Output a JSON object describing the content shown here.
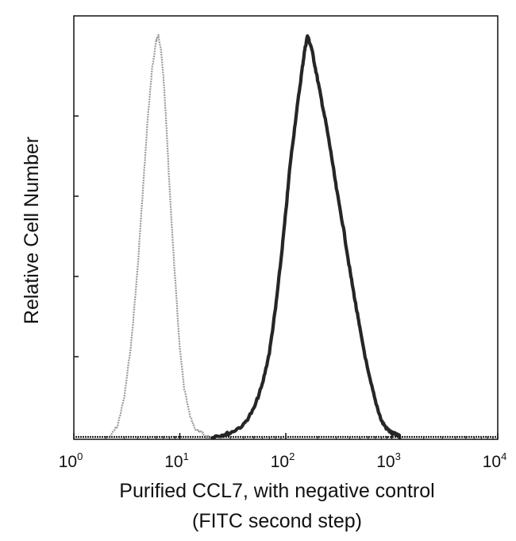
{
  "chart_data": {
    "type": "area",
    "title": "",
    "xlabel_line1": "Purified CCL7, with negative control",
    "xlabel_line2": "(FITC second step)",
    "ylabel": "Relative Cell Number",
    "x_scale": "log",
    "xlim": [
      1,
      10000
    ],
    "ylim": [
      0,
      1
    ],
    "y_tick_values": [
      0,
      0.2,
      0.4,
      0.6,
      0.8,
      1.0
    ],
    "y_tick_labels_shown": false,
    "x_ticks": [
      {
        "base": "10",
        "exp": "0",
        "value": 1
      },
      {
        "base": "10",
        "exp": "1",
        "value": 10
      },
      {
        "base": "10",
        "exp": "2",
        "value": 100
      },
      {
        "base": "10",
        "exp": "3",
        "value": 1000
      },
      {
        "base": "10",
        "exp": "4",
        "value": 10000
      }
    ],
    "grid": false,
    "legend": "none",
    "series": [
      {
        "role": "negative control",
        "color": "#8a8a8a",
        "x": [
          2.2,
          2.6,
          3.0,
          3.5,
          4.0,
          4.5,
          5.0,
          5.5,
          6.0,
          6.3,
          6.6,
          7.0,
          7.5,
          8.0,
          9.0,
          10.0,
          11.0,
          12.5,
          14.0,
          16.0,
          18.0,
          20.0
        ],
        "y": [
          0.0,
          0.03,
          0.1,
          0.24,
          0.42,
          0.62,
          0.8,
          0.92,
          0.99,
          1.0,
          0.97,
          0.9,
          0.77,
          0.62,
          0.4,
          0.22,
          0.12,
          0.05,
          0.02,
          0.01,
          0.0,
          0.0
        ]
      },
      {
        "role": "CCL7",
        "color": "#1a1a1a",
        "x": [
          20,
          25,
          30,
          40,
          50,
          60,
          70,
          80,
          90,
          100,
          110,
          125,
          140,
          150,
          160,
          175,
          190,
          210,
          240,
          270,
          300,
          350,
          400,
          450,
          500,
          600,
          700,
          800,
          900,
          1000,
          1100,
          1200
        ],
        "y": [
          0.0,
          0.005,
          0.01,
          0.03,
          0.07,
          0.13,
          0.21,
          0.32,
          0.44,
          0.56,
          0.68,
          0.8,
          0.9,
          0.96,
          1.0,
          0.97,
          0.92,
          0.86,
          0.78,
          0.7,
          0.62,
          0.52,
          0.42,
          0.34,
          0.27,
          0.16,
          0.09,
          0.04,
          0.02,
          0.01,
          0.005,
          0.0
        ]
      }
    ]
  }
}
